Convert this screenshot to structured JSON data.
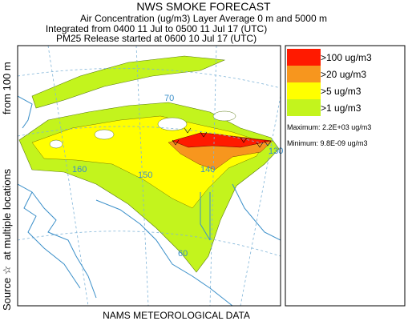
{
  "header": {
    "title": "NWS SMOKE FORECAST",
    "lines": [
      "Air Concentration (ug/m3) Layer Average    0 m and  5000 m",
      "Integrated from 0400 11 Jul to 0500 11 Jul 17 (UTC)",
      "PM25 Release started at 0600 10 Jul 17 (UTC)"
    ]
  },
  "side_label": [
    "Source ☆",
    "at multiple locations",
    "from  100 m"
  ],
  "footer": "NAMS METEOROLOGICAL DATA",
  "legend": {
    "items": [
      {
        "label": ">100 ug/m3",
        "color": "#ff1a00"
      },
      {
        "label": ">20 ug/m3",
        "color": "#f7961e"
      },
      {
        "label": ">5 ug/m3",
        "color": "#ffff00"
      },
      {
        "label": ">1 ug/m3",
        "color": "#c3f41d"
      }
    ],
    "maximum": "Maximum: 2.2E+03 ug/m3",
    "minimum": "Minimum: 9.8E-09 ug/m3"
  },
  "map": {
    "labels": [
      "160",
      "150",
      "140",
      "130",
      "60",
      "70"
    ]
  }
}
